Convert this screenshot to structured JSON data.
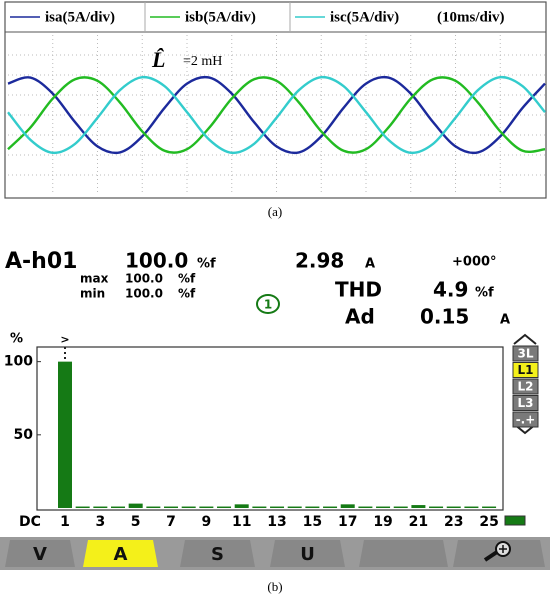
{
  "chart_data": [
    {
      "type": "line",
      "time_scale": "(10ms/div)",
      "annotation_symbol": "L̂",
      "annotation": "=2 mH",
      "x": [
        0,
        0.25,
        0.5,
        0.75,
        1,
        1.25,
        1.5,
        1.75,
        2,
        2.25,
        2.5,
        2.75,
        3,
        3.25,
        3.5,
        3.75,
        4,
        4.25,
        4.5,
        4.75,
        5,
        5.25,
        5.5,
        5.75,
        6
      ],
      "xlim": [
        0,
        6
      ],
      "ylim": [
        -4,
        4
      ],
      "series": [
        {
          "name": "isa(5A/div)",
          "color": "#1c2a9c",
          "values": [
            1.57,
            1.87,
            1.07,
            -0.36,
            -1.57,
            -1.87,
            -1.07,
            0.36,
            1.57,
            1.87,
            1.07,
            -0.36,
            -1.57,
            -1.87,
            -1.07,
            0.36,
            1.57,
            1.87,
            1.07,
            -0.36,
            -1.57,
            -1.87,
            -1.07,
            0.36,
            1.57
          ]
        },
        {
          "name": "isb(5A/div)",
          "color": "#22bb22",
          "values": [
            -1.71,
            -0.63,
            0.82,
            1.79,
            1.71,
            0.63,
            -0.82,
            -1.79,
            -1.71,
            -0.63,
            0.82,
            1.79,
            1.71,
            0.63,
            -0.82,
            -1.79,
            -1.71,
            -0.63,
            0.82,
            1.79,
            1.71,
            0.63,
            -0.82,
            -1.79,
            -1.71
          ]
        },
        {
          "name": "isc(5A/div)",
          "color": "#33cccc",
          "values": [
            0.14,
            -1.24,
            -1.89,
            -1.44,
            -0.14,
            1.24,
            1.89,
            1.44,
            0.14,
            -1.24,
            -1.89,
            -1.44,
            -0.14,
            1.24,
            1.89,
            1.44,
            0.14,
            -1.24,
            -1.89,
            -1.44,
            -0.14,
            1.24,
            1.89,
            1.44,
            0.14
          ]
        }
      ]
    },
    {
      "type": "bar",
      "y_label": "%",
      "cursor_label": ">",
      "categories": [
        "DC",
        "1",
        null,
        "3",
        null,
        "5",
        null,
        "7",
        null,
        "9",
        null,
        "11",
        null,
        "13",
        null,
        "15",
        null,
        "17",
        null,
        "19",
        null,
        "21",
        null,
        "23",
        null,
        "25"
      ],
      "values": [
        0,
        100,
        1,
        1,
        1,
        3,
        1,
        1,
        1,
        1,
        1,
        2.5,
        1,
        1,
        1,
        1,
        1,
        2.5,
        1,
        1,
        1,
        2,
        1,
        1,
        1,
        1
      ],
      "color": "#157a15",
      "ylim": [
        0,
        110
      ],
      "yticks": [
        50,
        100
      ]
    }
  ],
  "caption_a": "(a)",
  "caption_b": "(b)",
  "analyzer": {
    "harmonic": "A-h01",
    "value": "100.0",
    "value_unit": "%f",
    "rms": "2.98",
    "rms_unit": "A",
    "phase": "+000°",
    "max_label": "max",
    "max_value": "100.0",
    "max_unit": "%f",
    "min_label": "min",
    "min_value": "100.0",
    "min_unit": "%f",
    "channel": "1",
    "thd_label": "THD",
    "thd": "4.9",
    "thd_unit": "%f",
    "ad_label": "Ad",
    "ad": "0.15",
    "ad_unit": "A",
    "side_buttons": [
      "3L",
      "L1",
      "L2",
      "L3",
      "-.+"
    ],
    "tabs": [
      "V",
      "A",
      "S",
      "U"
    ]
  }
}
